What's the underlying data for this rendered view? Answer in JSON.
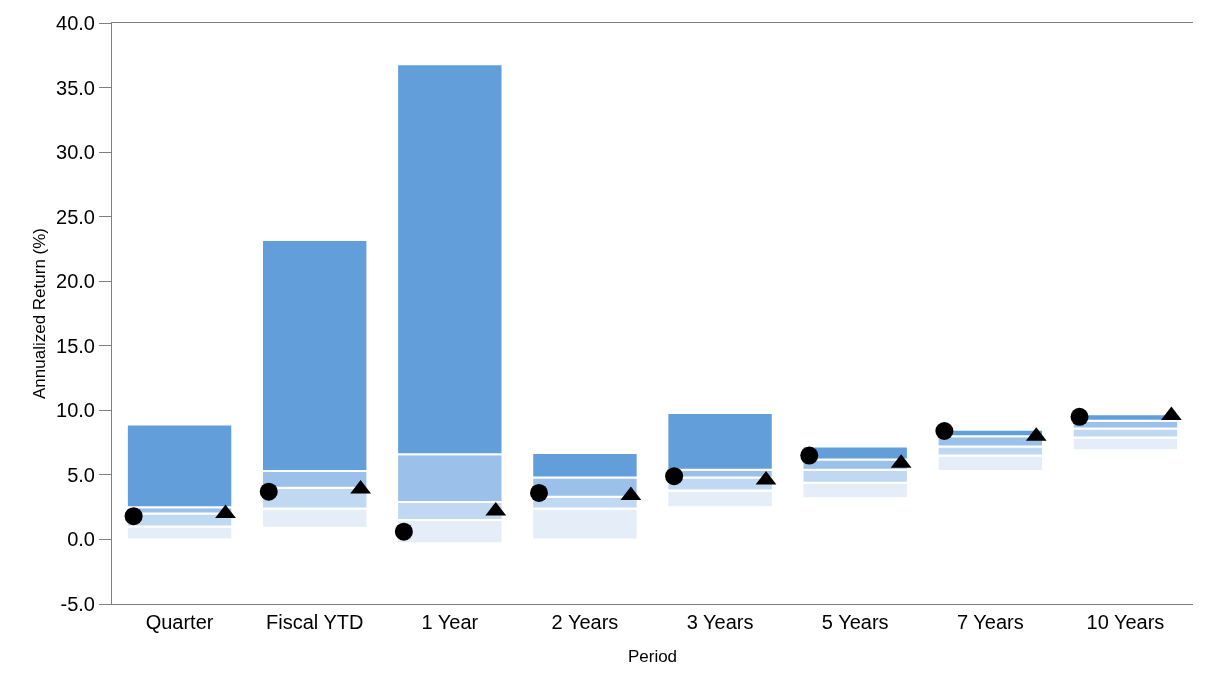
{
  "chart_data": {
    "type": "bar",
    "xlabel": "Period",
    "ylabel": "Annualized Return (%)",
    "categories": [
      "Quarter",
      "Fiscal YTD",
      "1 Year",
      "2 Years",
      "3 Years",
      "5 Years",
      "7 Years",
      "10 Years"
    ],
    "series": [
      {
        "color": "#e4edf8",
        "base": [
          0.0,
          0.9,
          -0.3,
          0.0,
          2.5,
          3.2,
          5.3,
          6.9
        ],
        "values": [
          1.0,
          1.5,
          1.8,
          2.4,
          1.3,
          1.2,
          1.2,
          1.0
        ]
      },
      {
        "color": "#c0d8f1",
        "base": [
          1.0,
          2.4,
          1.5,
          2.4,
          3.8,
          4.4,
          6.5,
          7.9
        ],
        "values": [
          1.0,
          1.6,
          1.4,
          0.9,
          1.0,
          1.0,
          0.7,
          0.7
        ]
      },
      {
        "color": "#9bc0ea",
        "base": [
          2.0,
          4.0,
          2.9,
          3.3,
          4.8,
          5.4,
          7.2,
          8.6
        ],
        "values": [
          0.5,
          1.3,
          3.7,
          1.5,
          0.6,
          0.8,
          0.8,
          0.6
        ]
      },
      {
        "color": "#629ed9",
        "base": [
          2.5,
          5.3,
          6.6,
          4.8,
          5.4,
          6.2,
          8.0,
          9.2
        ],
        "values": [
          6.4,
          17.9,
          30.2,
          1.9,
          4.4,
          1.0,
          0.5,
          0.5
        ]
      },
      {
        "type": "scatter",
        "marker": "circle",
        "color": "#000000",
        "values": [
          1.8,
          3.7,
          0.6,
          3.6,
          4.9,
          6.5,
          8.4,
          9.5
        ]
      },
      {
        "type": "scatter",
        "marker": "triangle",
        "color": "#000000",
        "values": [
          2.0,
          3.9,
          2.2,
          3.4,
          4.6,
          5.9,
          8.0,
          9.6
        ]
      }
    ],
    "ylim": [
      -5,
      40
    ],
    "yticks": [
      {
        "value": -5,
        "label": "-5.0"
      },
      {
        "value": 0,
        "label": "0.0"
      },
      {
        "value": 5,
        "label": "5.0"
      },
      {
        "value": 10,
        "label": "10.0"
      },
      {
        "value": 15,
        "label": "15.0"
      },
      {
        "value": 20,
        "label": "20.0"
      },
      {
        "value": 25,
        "label": "25.0"
      },
      {
        "value": 30,
        "label": "30.0"
      },
      {
        "value": 35,
        "label": "35.0"
      },
      {
        "value": 40,
        "label": "40.0"
      }
    ]
  }
}
